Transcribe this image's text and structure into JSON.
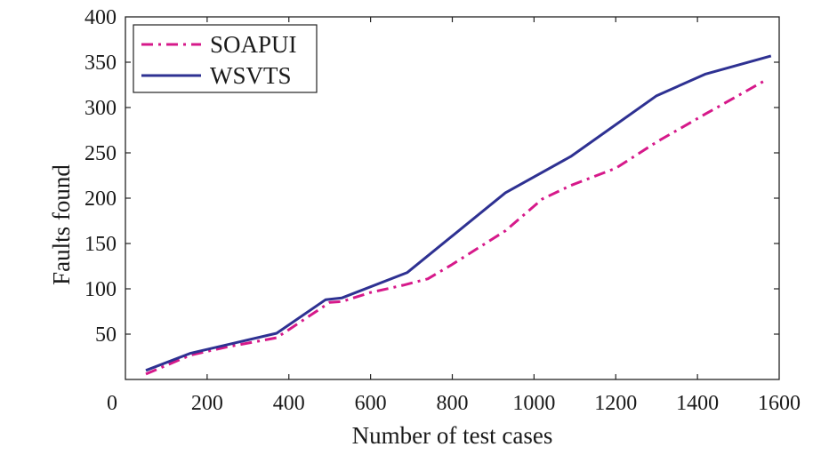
{
  "chart_data": {
    "type": "line",
    "xlabel": "Number of test cases",
    "ylabel": "Faults found",
    "xlim": [
      0,
      1600
    ],
    "ylim": [
      0,
      400
    ],
    "x_ticks": [
      0,
      200,
      400,
      600,
      800,
      1000,
      1200,
      1400,
      1600
    ],
    "y_ticks": [
      50,
      100,
      150,
      200,
      250,
      300,
      350,
      400
    ],
    "grid": false,
    "legend_position": "top-left",
    "series": [
      {
        "name": "SOAPUI",
        "color": "#d6198a",
        "line_style": "dash-dot",
        "points": [
          {
            "x": 50,
            "y": 6
          },
          {
            "x": 160,
            "y": 27
          },
          {
            "x": 250,
            "y": 36
          },
          {
            "x": 370,
            "y": 46
          },
          {
            "x": 500,
            "y": 85
          },
          {
            "x": 530,
            "y": 86
          },
          {
            "x": 600,
            "y": 96
          },
          {
            "x": 680,
            "y": 104
          },
          {
            "x": 740,
            "y": 111
          },
          {
            "x": 800,
            "y": 127
          },
          {
            "x": 930,
            "y": 164
          },
          {
            "x": 1020,
            "y": 199
          },
          {
            "x": 1090,
            "y": 214
          },
          {
            "x": 1200,
            "y": 233
          },
          {
            "x": 1300,
            "y": 262
          },
          {
            "x": 1420,
            "y": 293
          },
          {
            "x": 1440,
            "y": 298
          },
          {
            "x": 1570,
            "y": 331
          }
        ]
      },
      {
        "name": "WSVTS",
        "color": "#2e3192",
        "line_style": "solid",
        "points": [
          {
            "x": 50,
            "y": 10
          },
          {
            "x": 160,
            "y": 29
          },
          {
            "x": 370,
            "y": 51
          },
          {
            "x": 490,
            "y": 88
          },
          {
            "x": 530,
            "y": 90
          },
          {
            "x": 690,
            "y": 118
          },
          {
            "x": 930,
            "y": 206
          },
          {
            "x": 1090,
            "y": 246
          },
          {
            "x": 1300,
            "y": 313
          },
          {
            "x": 1420,
            "y": 337
          },
          {
            "x": 1580,
            "y": 357
          }
        ]
      }
    ]
  }
}
